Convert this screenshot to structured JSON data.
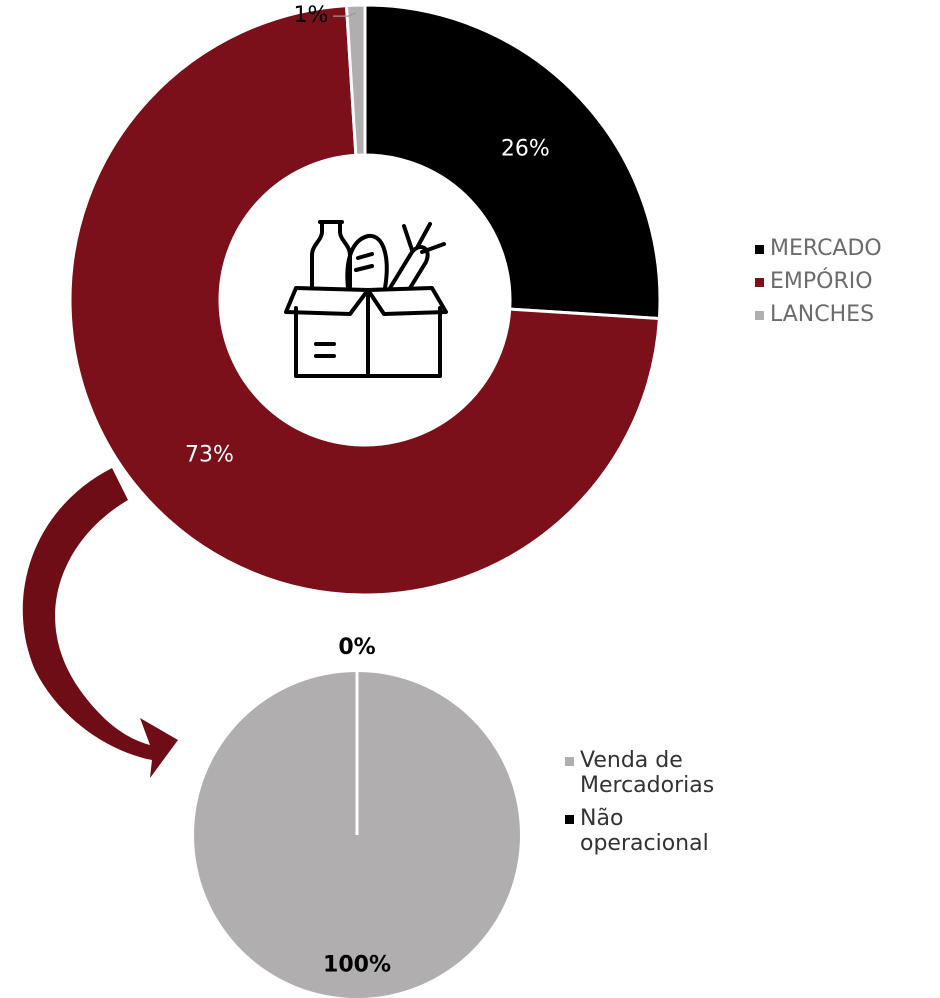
{
  "chart_data": [
    {
      "type": "donut",
      "categories": [
        "MERCADO",
        "EMPÓRIO",
        "LANCHES"
      ],
      "values": [
        26,
        73,
        1
      ],
      "value_labels": [
        "26%",
        "73%",
        "1%"
      ],
      "colors": [
        "#000000",
        "#7b0f1a",
        "#b0aeae"
      ],
      "legend": "right"
    },
    {
      "type": "pie",
      "categories": [
        "Venda de Mercadorias",
        "Não operacional"
      ],
      "values": [
        100,
        0
      ],
      "value_labels": [
        "100%",
        "0%"
      ],
      "colors": [
        "#b0aeae",
        "#000000"
      ],
      "legend": "right"
    }
  ]
}
